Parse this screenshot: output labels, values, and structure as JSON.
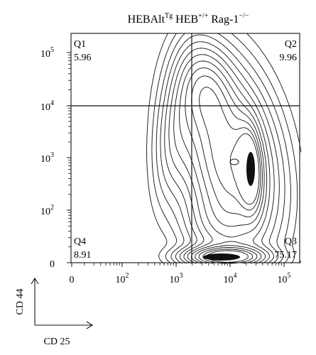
{
  "chart_data": {
    "type": "contour",
    "title": {
      "base1": "HEBAlt",
      "sup1": "Tg",
      "base2": " HEB",
      "sup2": "+/+",
      "base3": " Rag-1",
      "sup3": "−/−"
    },
    "x_axis": {
      "label": "CD 25",
      "scale": "log",
      "ticks": [
        {
          "text": "0",
          "exp": null
        },
        {
          "text": "10",
          "exp": "2"
        },
        {
          "text": "10",
          "exp": "3"
        },
        {
          "text": "10",
          "exp": "4"
        },
        {
          "text": "10",
          "exp": "5"
        }
      ]
    },
    "y_axis": {
      "label": "CD 44",
      "scale": "log",
      "ticks": [
        {
          "text": "0",
          "exp": null
        },
        {
          "text": "10",
          "exp": "2"
        },
        {
          "text": "10",
          "exp": "3"
        },
        {
          "text": "10",
          "exp": "4"
        },
        {
          "text": "10",
          "exp": "5"
        }
      ]
    },
    "quadrants": [
      {
        "name": "Q1",
        "value": "5.96"
      },
      {
        "name": "Q2",
        "value": "9.96"
      },
      {
        "name": "Q3",
        "value": "75.17"
      },
      {
        "name": "Q4",
        "value": "8.91"
      }
    ]
  }
}
